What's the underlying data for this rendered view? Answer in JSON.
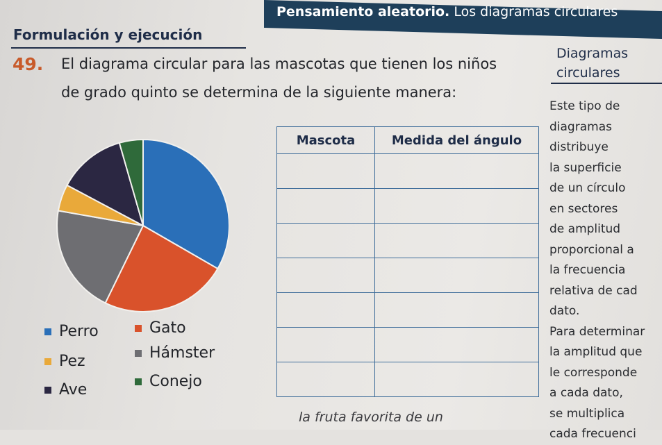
{
  "header": {
    "title_bold": "Pensamiento aleatorio.",
    "title_rest": " Los diagramas circulares"
  },
  "section": {
    "label": "Formulación y ejecución"
  },
  "exercise": {
    "number": "49.",
    "line1": "El diagrama circular para las mascotas que tienen los niños",
    "line2": "de grado quinto se determina de la siguiente manera:"
  },
  "colors": {
    "perro": "#2a6fb8",
    "gato": "#d9522b",
    "pez": "#e9a93a",
    "hamster": "#6e6e72",
    "ave": "#2b2742",
    "conejo": "#2f6a3a"
  },
  "legend": [
    {
      "label": "Perro",
      "color": "#2a6fb8"
    },
    {
      "label": "Gato",
      "color": "#d9522b"
    },
    {
      "label": "Pez",
      "color": "#e9a93a"
    },
    {
      "label": "Hámster",
      "color": "#6e6e72"
    },
    {
      "label": "Ave",
      "color": "#2b2742"
    },
    {
      "label": "Conejo",
      "color": "#2f6a3a"
    }
  ],
  "chart_data": {
    "type": "pie",
    "series": [
      {
        "name": "Perro",
        "value": 120
      },
      {
        "name": "Gato",
        "value": 86
      },
      {
        "name": "Hámster",
        "value": 74
      },
      {
        "name": "Pez",
        "value": 18
      },
      {
        "name": "Ave",
        "value": 46
      },
      {
        "name": "Conejo",
        "value": 16
      }
    ]
  },
  "table": {
    "col1": "Mascota",
    "col2": "Medida del ángulo"
  },
  "sidebar": {
    "title_line1": "Diagramas",
    "title_line2": "circulares",
    "lines": [
      "Este tipo de",
      "diagramas",
      "distribuye",
      "la superficie",
      "de un círculo",
      "en sectores",
      "de amplitud",
      "proporcional a",
      "la frecuencia",
      "relativa de cad",
      "dato.",
      "Para determinar",
      "la amplitud que",
      "le corresponde",
      "a cada dato,",
      "se multiplica",
      "cada frecuenci"
    ]
  },
  "bottom": {
    "text": "la fruta favorita de un"
  }
}
